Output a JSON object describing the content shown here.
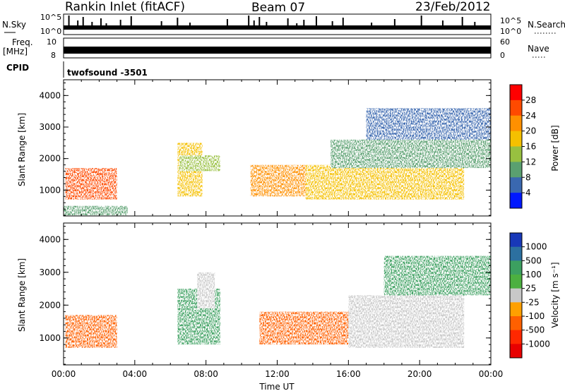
{
  "header": {
    "station": "Rankin Inlet (fitACF)",
    "beam": "Beam 07",
    "date": "23/Feb/2012"
  },
  "strips": {
    "nsky_label": "N.Sky",
    "nsky_scale_top": "10^5",
    "nsky_scale_bottom": "10^0",
    "nsearch_label": "N.Search",
    "freq_label": "Freq.",
    "freq_unit": "[MHz]",
    "freq_tick_top": "10",
    "freq_tick_bottom": "8",
    "nave_label": "Nave",
    "nave_tick_top": "60",
    "nave_tick_bottom": "0",
    "cpid_label": "CPID",
    "cpid_value": "twofsound  -3501"
  },
  "colorbars": {
    "power": {
      "label": "Power [dB]",
      "ticks": [
        "28",
        "24",
        "20",
        "16",
        "12",
        "8",
        "4"
      ],
      "colors": [
        "#ff0000",
        "#ff4a00",
        "#ff9000",
        "#f5c000",
        "#98c040",
        "#5aa070",
        "#3a68b0",
        "#0018ff"
      ]
    },
    "velocity": {
      "label": "Velocity [m s⁻¹]",
      "ticks": [
        "1000",
        "500",
        "100",
        "25",
        "-25",
        "-100",
        "-500",
        "-1000"
      ],
      "colors": [
        "#1838b8",
        "#2c70a0",
        "#3ca060",
        "#4cb040",
        "#c8c8c8",
        "#ffa000",
        "#ff6000",
        "#ff2800",
        "#e80000"
      ]
    }
  },
  "chart_data": [
    {
      "type": "heatmap",
      "panel": "power",
      "xlabel": "",
      "ylabel": "Slant Range [km]",
      "xlim_hours_ut": [
        0,
        24
      ],
      "ylim_km": [
        180,
        4500
      ],
      "yticks": [
        "1000",
        "2000",
        "3000",
        "4000"
      ],
      "colorbar": "Power [dB]",
      "echo_regions": [
        {
          "t": [
            0.1,
            3.0
          ],
          "range_km": [
            700,
            1700
          ],
          "power_db": 26
        },
        {
          "t": [
            0.0,
            3.6
          ],
          "range_km": [
            200,
            500
          ],
          "power_db": 10
        },
        {
          "t": [
            6.4,
            7.8
          ],
          "range_km": [
            800,
            2500
          ],
          "power_db": 20
        },
        {
          "t": [
            6.5,
            8.8
          ],
          "range_km": [
            1600,
            2100
          ],
          "power_db": 14
        },
        {
          "t": [
            10.5,
            13.6
          ],
          "range_km": [
            800,
            1800
          ],
          "power_db": 22
        },
        {
          "t": [
            13.6,
            22.5
          ],
          "range_km": [
            700,
            1800
          ],
          "power_db": 20
        },
        {
          "t": [
            15.0,
            24.0
          ],
          "range_km": [
            1700,
            2600
          ],
          "power_db": 12
        },
        {
          "t": [
            17.0,
            24.0
          ],
          "range_km": [
            2600,
            3600
          ],
          "power_db": 8
        }
      ]
    },
    {
      "type": "heatmap",
      "panel": "velocity",
      "xlabel": "Time UT",
      "ylabel": "Slant Range [km]",
      "xlim_hours_ut": [
        0,
        24
      ],
      "ylim_km": [
        180,
        4500
      ],
      "yticks": [
        "1000",
        "2000",
        "3000",
        "4000"
      ],
      "xticks": [
        "00:00",
        "04:00",
        "08:00",
        "12:00",
        "16:00",
        "20:00",
        "00:00"
      ],
      "colorbar": "Velocity [m s⁻¹]",
      "echo_regions": [
        {
          "t": [
            0.1,
            3.0
          ],
          "range_km": [
            700,
            1700
          ],
          "velocity_ms": -200
        },
        {
          "t": [
            6.4,
            8.8
          ],
          "range_km": [
            800,
            2500
          ],
          "velocity_ms": 400
        },
        {
          "t": [
            7.5,
            8.5
          ],
          "range_km": [
            1900,
            3000
          ],
          "velocity_ms": 0
        },
        {
          "t": [
            11.0,
            16.0
          ],
          "range_km": [
            800,
            1800
          ],
          "velocity_ms": -300
        },
        {
          "t": [
            16.0,
            22.5
          ],
          "range_km": [
            700,
            2300
          ],
          "velocity_ms": 0
        },
        {
          "t": [
            18.0,
            24.0
          ],
          "range_km": [
            2300,
            3500
          ],
          "velocity_ms": 100
        }
      ]
    }
  ]
}
